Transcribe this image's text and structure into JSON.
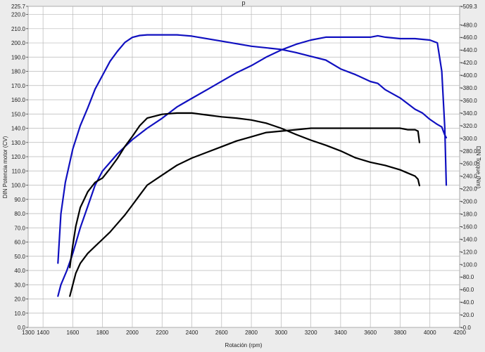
{
  "chart_data": {
    "type": "line",
    "title": "p",
    "xlabel": "Rotación (rpm)",
    "ylabel_left": "DIN Potencia motor (CV)",
    "ylabel_right": "DIN Torque (Nm)",
    "xlim": [
      1300,
      4200
    ],
    "ylim_left": [
      0,
      225.7
    ],
    "ylim_right": [
      0,
      509.3
    ],
    "grid": true,
    "x_ticks": [
      "1300",
      "1400",
      "1600",
      "1800",
      "2000",
      "2200",
      "2400",
      "2600",
      "2800",
      "3000",
      "3200",
      "3400",
      "3600",
      "3800",
      "4000",
      "4200"
    ],
    "x_tick_values": [
      1300,
      1400,
      1600,
      1800,
      2000,
      2200,
      2400,
      2600,
      2800,
      3000,
      3200,
      3400,
      3600,
      3800,
      4000,
      4200
    ],
    "y_left_ticks": [
      "0.0",
      "10.0",
      "20.0",
      "30.0",
      "40.0",
      "50.0",
      "60.0",
      "70.0",
      "80.0",
      "90.0",
      "100.0",
      "110.0",
      "120.0",
      "130.0",
      "140.0",
      "150.0",
      "160.0",
      "170.0",
      "180.0",
      "190.0",
      "200.0",
      "210.0",
      "220.0",
      "225.7"
    ],
    "y_left_tick_values": [
      0,
      10,
      20,
      30,
      40,
      50,
      60,
      70,
      80,
      90,
      100,
      110,
      120,
      130,
      140,
      150,
      160,
      170,
      180,
      190,
      200,
      210,
      220,
      225.7
    ],
    "y_right_ticks": [
      "0.0",
      "20.0",
      "40.0",
      "60.0",
      "80.0",
      "100.0",
      "120.0",
      "140.0",
      "160.0",
      "180.0",
      "200.0",
      "220.0",
      "240.0",
      "260.0",
      "280.0",
      "300.0",
      "320.0",
      "340.0",
      "360.0",
      "380.0",
      "400.0",
      "420.0",
      "440.0",
      "460.0",
      "480.0",
      "509.3"
    ],
    "y_right_tick_values": [
      0,
      20,
      40,
      60,
      80,
      100,
      120,
      140,
      160,
      180,
      200,
      220,
      240,
      260,
      280,
      300,
      320,
      340,
      360,
      380,
      400,
      420,
      440,
      460,
      480,
      509.3
    ],
    "series": [
      {
        "color": "#1010c0",
        "axis": "right",
        "x": [
          1500,
          1520,
          1550,
          1600,
          1650,
          1700,
          1750,
          1800,
          1850,
          1900,
          1950,
          2000,
          2050,
          2100,
          2200,
          2300,
          2400,
          2600,
          2800,
          3000,
          3100,
          3200,
          3300,
          3400,
          3500,
          3600,
          3650,
          3700,
          3800,
          3900,
          3950,
          4000,
          4050,
          4080,
          4100,
          4110
        ],
        "y": [
          102,
          180,
          230,
          283,
          320,
          348,
          378,
          400,
          422,
          438,
          452,
          460,
          463,
          464,
          464,
          464,
          462,
          454,
          446,
          441,
          436,
          430,
          424,
          410,
          401,
          390,
          387,
          377,
          364,
          346,
          340,
          330,
          322,
          318,
          305,
          301
        ]
      },
      {
        "color": "#1010c0",
        "axis": "left",
        "x": [
          1500,
          1520,
          1560,
          1600,
          1650,
          1700,
          1750,
          1800,
          1850,
          1900,
          1950,
          2000,
          2100,
          2200,
          2300,
          2400,
          2500,
          2600,
          2700,
          2800,
          2900,
          3000,
          3100,
          3200,
          3300,
          3400,
          3500,
          3600,
          3650,
          3700,
          3800,
          3900,
          4000,
          4050,
          4080,
          4100,
          4110
        ],
        "y": [
          22,
          30,
          40,
          52,
          70,
          85,
          100,
          110,
          116,
          122,
          127,
          132,
          140,
          147,
          155,
          161,
          167,
          173,
          179,
          184,
          190,
          195,
          199,
          202,
          204,
          204,
          204,
          204,
          205,
          204,
          203,
          203,
          202,
          200,
          180,
          140,
          100
        ]
      },
      {
        "color": "#000000",
        "axis": "right",
        "x": [
          1580,
          1600,
          1620,
          1650,
          1700,
          1750,
          1800,
          1850,
          1900,
          1950,
          2000,
          2050,
          2100,
          2200,
          2300,
          2400,
          2500,
          2600,
          2700,
          2800,
          2900,
          3000,
          3100,
          3200,
          3300,
          3400,
          3500,
          3600,
          3700,
          3800,
          3850,
          3900,
          3920,
          3930
        ],
        "y": [
          95,
          130,
          160,
          190,
          215,
          230,
          237,
          252,
          268,
          287,
          303,
          320,
          332,
          338,
          340,
          340,
          337,
          334,
          332,
          329,
          324,
          316,
          306,
          297,
          289,
          280,
          269,
          262,
          257,
          250,
          245,
          240,
          235,
          225
        ]
      },
      {
        "color": "#000000",
        "axis": "left",
        "x": [
          1580,
          1600,
          1620,
          1650,
          1700,
          1750,
          1800,
          1850,
          1900,
          1950,
          2000,
          2050,
          2100,
          2200,
          2300,
          2400,
          2500,
          2600,
          2700,
          2800,
          2900,
          3000,
          3100,
          3200,
          3300,
          3400,
          3500,
          3600,
          3700,
          3800,
          3850,
          3900,
          3920,
          3930
        ],
        "y": [
          22,
          30,
          38,
          45,
          52,
          57,
          62,
          67,
          73,
          79,
          86,
          93,
          100,
          107,
          114,
          119,
          123,
          127,
          131,
          134,
          137,
          138,
          139,
          140,
          140,
          140,
          140,
          140,
          140,
          140,
          139,
          139,
          138,
          130
        ]
      }
    ]
  }
}
